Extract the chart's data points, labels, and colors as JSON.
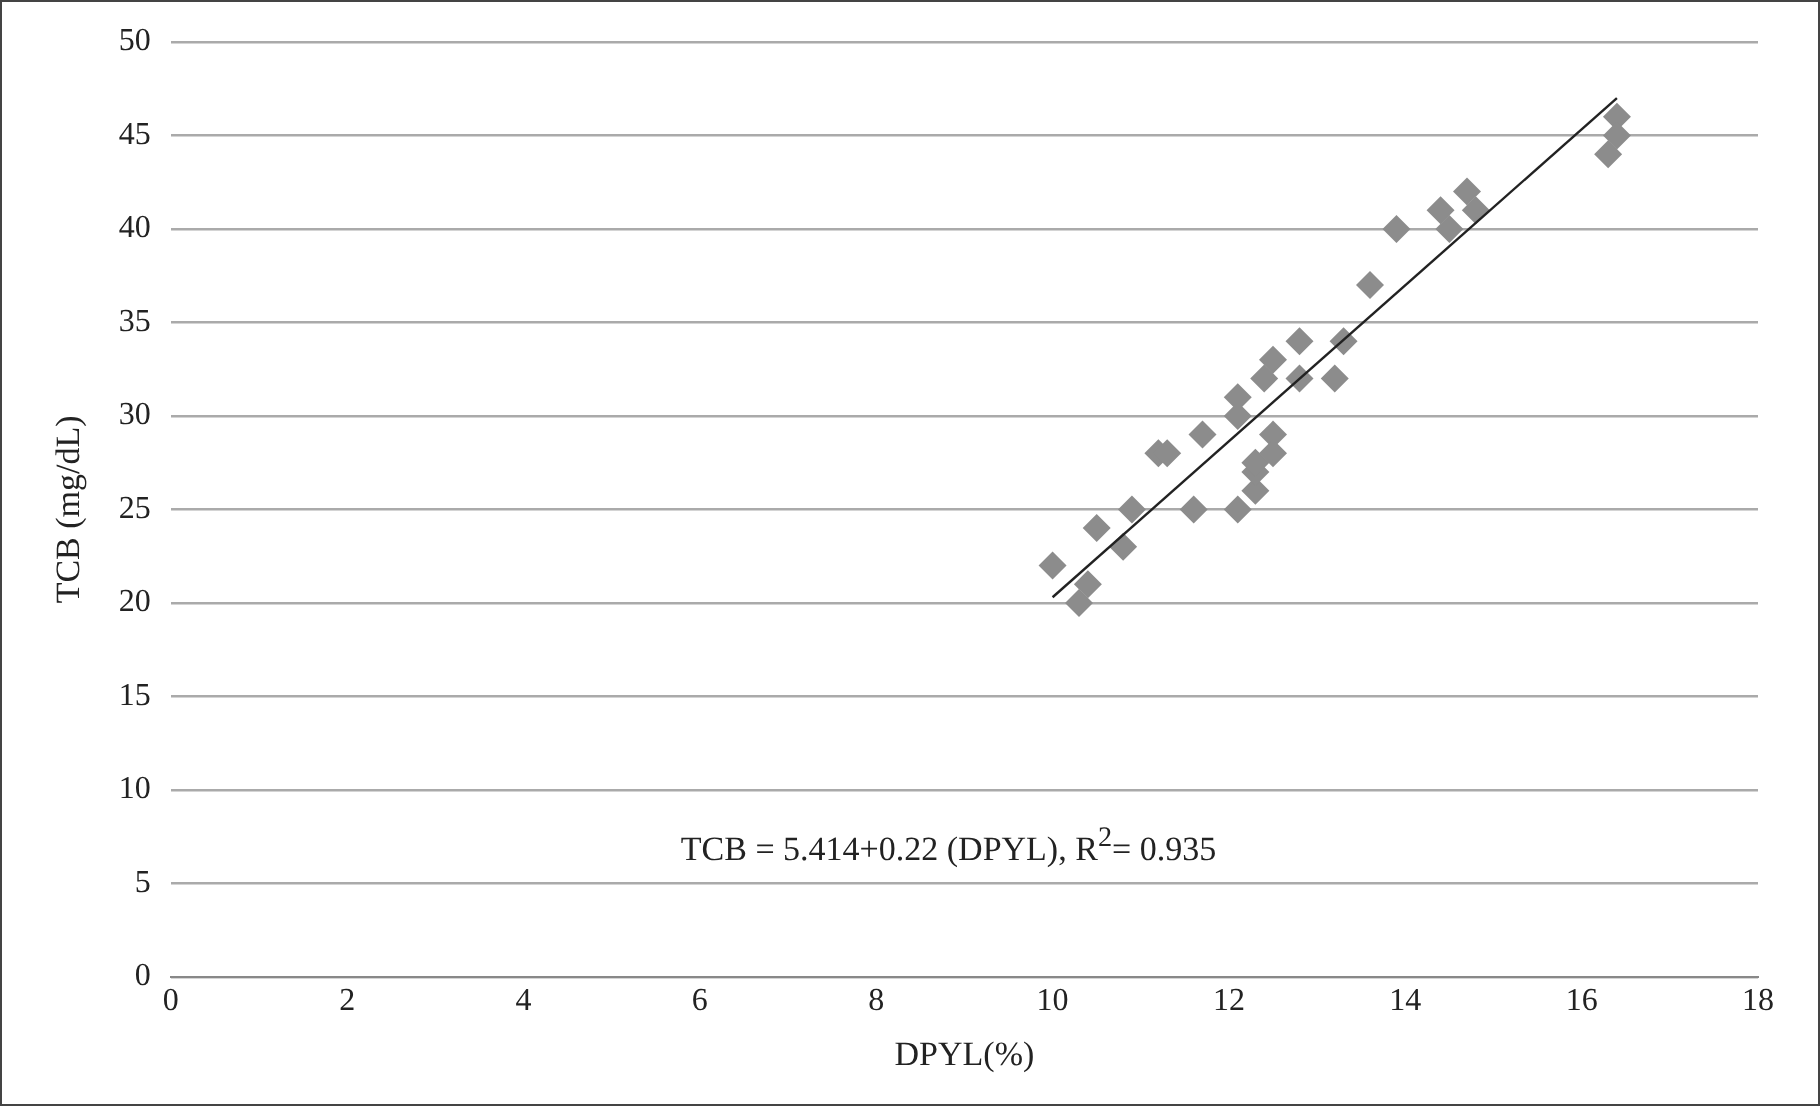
{
  "chart_data": {
    "type": "scatter",
    "xlabel": "DPYL(%)",
    "ylabel": "TCB (mg/dL)",
    "xlim": [
      0,
      18
    ],
    "xticks": [
      0,
      2,
      4,
      6,
      8,
      10,
      12,
      14,
      16,
      18
    ],
    "ylim": [
      0,
      50
    ],
    "yticks": [
      0,
      5,
      10,
      15,
      20,
      25,
      30,
      35,
      40,
      45,
      50
    ],
    "grid": "y",
    "legend": false,
    "marker": "diamond",
    "annotations": [
      "TCB = 5.414+0.22 (DPYL), R$^{2}$= 0.935"
    ],
    "series": [
      {
        "color": "#8c8c8c",
        "x": [
          10.0,
          10.3,
          10.4,
          10.5,
          10.8,
          10.9,
          11.2,
          11.3,
          11.6,
          11.7,
          12.1,
          12.1,
          12.1,
          12.3,
          12.3,
          12.3,
          12.5,
          12.5,
          12.4,
          12.5,
          12.8,
          12.8,
          13.2,
          13.3,
          13.6,
          13.9,
          14.4,
          14.5,
          14.7,
          14.8,
          16.4,
          16.4,
          16.3
        ],
        "values": [
          22,
          20,
          21,
          24,
          23,
          25,
          28,
          28,
          25,
          29,
          25,
          31,
          30,
          26,
          27,
          27.5,
          29,
          28,
          32,
          33,
          34,
          32,
          32,
          34,
          37,
          40,
          41,
          40,
          42,
          41,
          46,
          45,
          44
        ]
      },
      {
        "type": "line",
        "color": "#222222",
        "marker": "none",
        "x": [
          10.0,
          16.4
        ],
        "values": [
          20.3,
          47
        ]
      }
    ]
  }
}
